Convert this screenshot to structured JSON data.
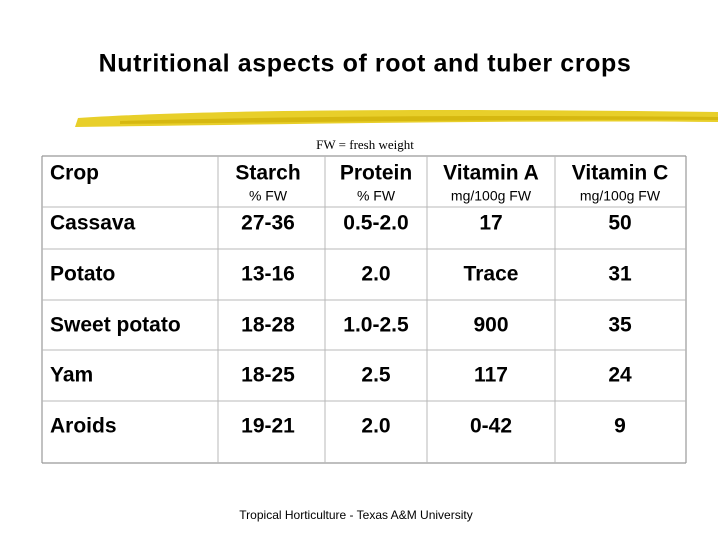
{
  "title": "Nutritional aspects of root and tuber crops",
  "note": "FW = fresh weight",
  "table": {
    "header": [
      {
        "label": "Crop"
      },
      {
        "label": "Starch",
        "unit": "% FW"
      },
      {
        "label": "Protein",
        "unit": "% FW"
      },
      {
        "label": "Vitamin A",
        "unit": "mg/100g FW"
      },
      {
        "label": "Vitamin C",
        "unit": "mg/100g FW"
      }
    ],
    "rows": [
      [
        "Cassava",
        "27-36",
        "0.5-2.0",
        "17",
        "50"
      ],
      [
        "Potato",
        "13-16",
        "2.0",
        "Trace",
        "31"
      ],
      [
        "Sweet potato",
        "18-28",
        "1.0-2.5",
        "900",
        "35"
      ],
      [
        "Yam",
        "18-25",
        "2.5",
        "117",
        "24"
      ],
      [
        "Aroids",
        "19-21",
        "2.0",
        "0-42",
        "9"
      ]
    ]
  },
  "footer": "Tropical Horticulture - Texas A&M University"
}
